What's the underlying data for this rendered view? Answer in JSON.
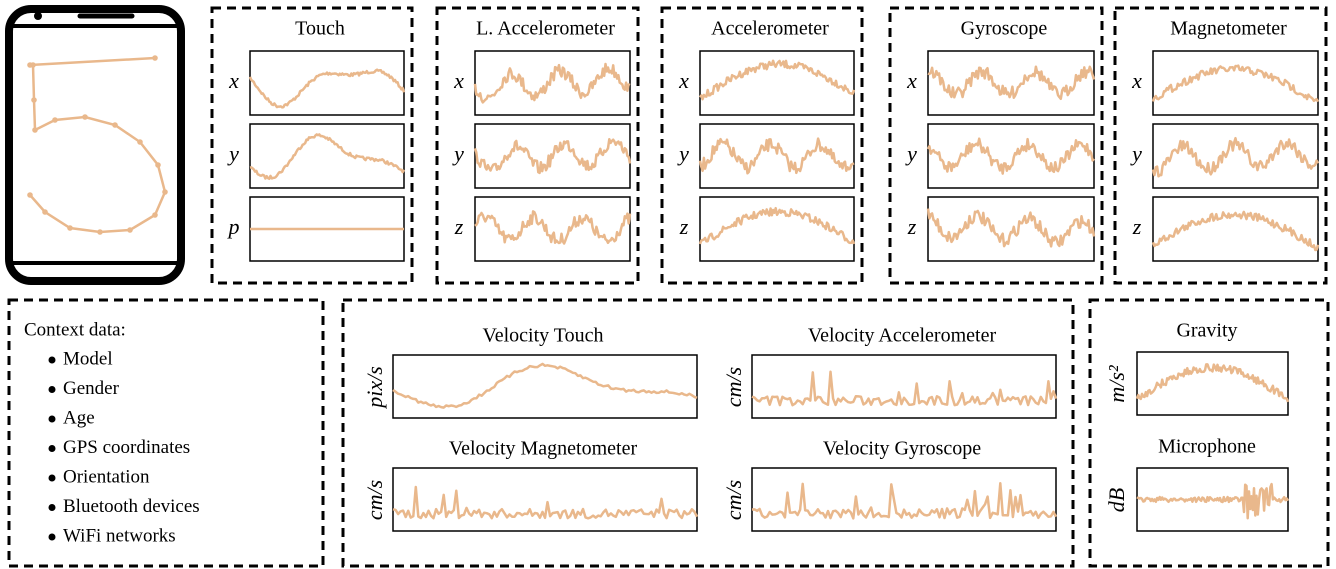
{
  "sensors": [
    {
      "title": "Touch",
      "axes": [
        "x",
        "y",
        "p"
      ]
    },
    {
      "title": "L. Accelerometer",
      "axes": [
        "x",
        "y",
        "z"
      ]
    },
    {
      "title": "Accelerometer",
      "axes": [
        "x",
        "y",
        "z"
      ]
    },
    {
      "title": "Gyroscope",
      "axes": [
        "x",
        "y",
        "z"
      ]
    },
    {
      "title": "Magnetometer",
      "axes": [
        "x",
        "y",
        "z"
      ]
    }
  ],
  "context": {
    "title": "Context data:",
    "items": [
      "Model",
      "Gender",
      "Age",
      "GPS coordinates",
      "Orientation",
      "Bluetooth devices",
      "WiFi networks"
    ]
  },
  "velocity": [
    {
      "title": "Velocity Touch",
      "unit": "pix/s"
    },
    {
      "title": "Velocity Accelerometer",
      "unit": "cm/s"
    },
    {
      "title": "Velocity Magnetometer",
      "unit": "cm/s"
    },
    {
      "title": "Velocity Gyroscope",
      "unit": "cm/s"
    }
  ],
  "other": [
    {
      "title": "Gravity",
      "unit": "m/s²"
    },
    {
      "title": "Microphone",
      "unit": "dB"
    }
  ]
}
